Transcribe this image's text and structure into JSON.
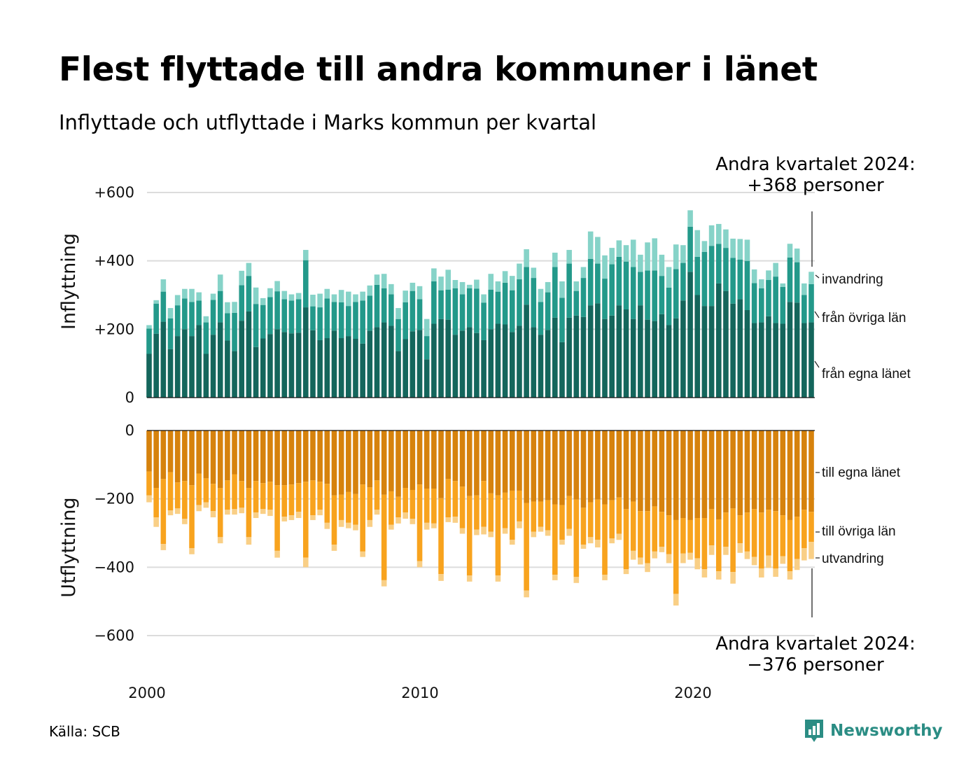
{
  "header": {
    "title": "Flest flyttade till andra kommuner i länet",
    "subtitle": "Inflyttade och utflyttade i Marks kommun per kvartal"
  },
  "annotations": {
    "in_line1": "Andra kvartalet 2024:",
    "in_line2": "+368 personer",
    "out_line1": "Andra kvartalet 2024:",
    "out_line2": "−376 personer"
  },
  "footer": {
    "source": "Källa: SCB",
    "brand": "Newsworthy"
  },
  "colors": {
    "in_own": "#14665c",
    "in_other": "#23998a",
    "in_immig": "#86d3c8",
    "out_own": "#d6820d",
    "out_other": "#f8a31e",
    "out_emig": "#f9cf86",
    "grid": "#dcdcdc",
    "brand": "#2b8d84"
  },
  "chart_data": {
    "type": "bar",
    "stacked": true,
    "x_start": "2000 Q1",
    "x_end": "2024 Q2",
    "x_ticks": [
      "2000",
      "2010",
      "2020"
    ],
    "panels": [
      {
        "name": "Inflyttning",
        "ylabel": "Inflyttning",
        "y_ticks": [
          "0",
          "+200",
          "+400",
          "+600"
        ],
        "ylim": [
          0,
          600
        ],
        "segment_labels": [
          "invandring",
          "från övriga län",
          "från egna länet"
        ],
        "series": [
          {
            "name": "från egna länet",
            "color": "in_own",
            "values": [
              128,
              187,
              222,
              142,
              180,
              200,
              180,
              212,
              128,
              184,
              220,
              167,
              136,
              225,
              252,
              148,
              173,
              186,
              200,
              192,
              188,
              190,
              264,
              197,
              168,
              174,
              196,
              174,
              180,
              172,
              158,
              196,
              206,
              220,
              210,
              136,
              171,
              194,
              198,
              112,
              216,
              230,
              228,
              184,
              196,
              206,
              189,
              168,
              200,
              216,
              214,
              192,
              210,
              272,
              206,
              184,
              198,
              234,
              162,
              234,
              240,
              236,
              270,
              276,
              230,
              240,
              270,
              258,
              230,
              270,
              228,
              224,
              244,
              212,
              232,
              284,
              368,
              300,
              268,
              268,
              334,
              312,
              275,
              288,
              256,
              218,
              220,
              238,
              218,
              216,
              280,
              278,
              218,
              220
            ]
          },
          {
            "name": "från övriga län",
            "color": "in_other",
            "values": [
              74,
              88,
              88,
              90,
              90,
              90,
              100,
              72,
              92,
              102,
              92,
              80,
              112,
              104,
              104,
              126,
              98,
              108,
              111,
              96,
              96,
              98,
              138,
              70,
              96,
              116,
              84,
              105,
              88,
              108,
              126,
              102,
              124,
              100,
              92,
              94,
              108,
              118,
              90,
              68,
              124,
              84,
              88,
              136,
              106,
              114,
              130,
              110,
              116,
              94,
              122,
              122,
              136,
              110,
              144,
              96,
              110,
              148,
              130,
              158,
              72,
              114,
              136,
              116,
              118,
              150,
              142,
              140,
              152,
              98,
              144,
              148,
              112,
              110,
              144,
              110,
              132,
              112,
              158,
              176,
              116,
              126,
              134,
              116,
              144,
              117,
              100,
              106,
              136,
              108,
              130,
              118,
              82,
              112
            ]
          },
          {
            "name": "invandring",
            "color": "in_immig",
            "values": [
              10,
              10,
              36,
              30,
              30,
              28,
              38,
              24,
              18,
              18,
              48,
              32,
              32,
              42,
              38,
              48,
              20,
              26,
              30,
              24,
              18,
              18,
              30,
              34,
              40,
              28,
              22,
              36,
              42,
              22,
              26,
              30,
              30,
              42,
              30,
              32,
              34,
              24,
              38,
              50,
              38,
              40,
              58,
              24,
              36,
              10,
              26,
              24,
              46,
              30,
              34,
              42,
              46,
              52,
              30,
              38,
              30,
              42,
              48,
              40,
              28,
              32,
              80,
              78,
              68,
              48,
              48,
              48,
              80,
              50,
              82,
              94,
              62,
              60,
              72,
              52,
              48,
              78,
              32,
              60,
              58,
              54,
              56,
              60,
              62,
              40,
              26,
              28,
              40,
              10,
              40,
              40,
              34,
              36
            ]
          }
        ]
      },
      {
        "name": "Utflyttning",
        "ylabel": "Utflyttning",
        "y_ticks": [
          "0",
          "−200",
          "−400",
          "−600"
        ],
        "ylim": [
          -600,
          0
        ],
        "segment_labels": [
          "till egna länet",
          "till övriga län",
          "utvandring"
        ],
        "series": [
          {
            "name": "till egna länet",
            "color": "out_own",
            "values": [
              -120,
              -168,
              -142,
              -122,
              -152,
              -148,
              -160,
              -126,
              -140,
              -156,
              -168,
              -146,
              -128,
              -148,
              -168,
              -148,
              -154,
              -150,
              -160,
              -160,
              -158,
              -154,
              -150,
              -146,
              -150,
              -156,
              -190,
              -188,
              -180,
              -186,
              -158,
              -166,
              -146,
              -188,
              -178,
              -194,
              -168,
              -174,
              -158,
              -170,
              -170,
              -198,
              -142,
              -148,
              -164,
              -192,
              -190,
              -148,
              -184,
              -190,
              -182,
              -176,
              -176,
              -212,
              -208,
              -208,
              -204,
              -216,
              -218,
              -192,
              -202,
              -226,
              -210,
              -202,
              -216,
              -204,
              -196,
              -230,
              -208,
              -236,
              -236,
              -222,
              -238,
              -248,
              -262,
              -256,
              -262,
              -256,
              -256,
              -230,
              -260,
              -240,
              -228,
              -248,
              -240,
              -230,
              -240,
              -232,
              -236,
              -248,
              -262,
              -252,
              -232,
              -238
            ]
          },
          {
            "name": "till övriga län",
            "color": "out_other",
            "values": [
              -70,
              -86,
              -190,
              -112,
              -76,
              -110,
              -184,
              -92,
              -70,
              -80,
              -144,
              -86,
              -102,
              -78,
              -144,
              -92,
              -76,
              -82,
              -192,
              -92,
              -90,
              -84,
              -222,
              -102,
              -82,
              -114,
              -144,
              -74,
              -90,
              -90,
              -196,
              -96,
              -86,
              -250,
              -98,
              -60,
              -72,
              -84,
              -224,
              -100,
              -102,
              -222,
              -112,
              -104,
              -122,
              -232,
              -100,
              -134,
              -112,
              -234,
              -104,
              -144,
              -90,
              -256,
              -88,
              -74,
              -88,
              -206,
              -102,
              -96,
              -226,
              -108,
              -102,
              -118,
              -206,
              -112,
              -106,
              -176,
              -144,
              -136,
              -152,
              -132,
              -102,
              -114,
              -216,
              -104,
              -96,
              -118,
              -150,
              -106,
              -152,
              -100,
              -186,
              -82,
              -114,
              -140,
              -164,
              -134,
              -168,
              -120,
              -150,
              -124,
              -112,
              -88
            ]
          },
          {
            "name": "utvandring",
            "color": "out_emig",
            "values": [
              -20,
              -28,
              -18,
              -14,
              -16,
              -16,
              -18,
              -18,
              -16,
              -18,
              -18,
              -14,
              -16,
              -16,
              -22,
              -16,
              -14,
              -18,
              -20,
              -14,
              -14,
              -18,
              -28,
              -14,
              -16,
              -18,
              -18,
              -20,
              -16,
              -16,
              -16,
              -20,
              -14,
              -18,
              -14,
              -18,
              -18,
              -16,
              -18,
              -20,
              -14,
              -20,
              -14,
              -18,
              -16,
              -18,
              -16,
              -22,
              -16,
              -18,
              -16,
              -14,
              -20,
              -20,
              -16,
              -14,
              -16,
              -16,
              -14,
              -20,
              -18,
              -12,
              -18,
              -22,
              -16,
              -14,
              -18,
              -14,
              -26,
              -20,
              -26,
              -20,
              -16,
              -26,
              -34,
              -28,
              -20,
              -32,
              -24,
              -28,
              -24,
              -24,
              -34,
              -28,
              -22,
              -24,
              -26,
              -36,
              -24,
              -22,
              -24,
              -32,
              -36,
              -50
            ]
          }
        ]
      }
    ]
  }
}
